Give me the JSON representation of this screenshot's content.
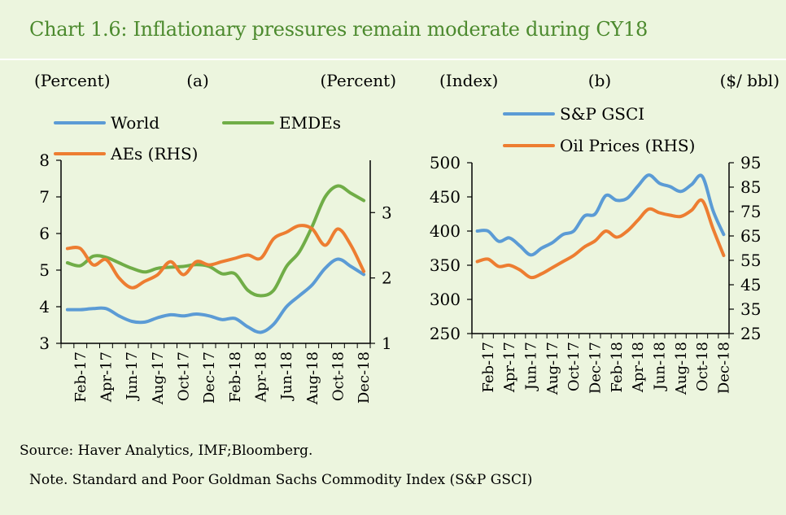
{
  "title": "Chart 1.6: Inflationary pressures remain moderate during CY18",
  "source": "Source: Haver Analytics, IMF;Bloomberg.",
  "note": "Note. Standard and Poor Goldman Sachs Commodity Index (S&P GSCI)",
  "colors": {
    "title": "#4c8a2e",
    "background": "#ecf5de",
    "blue": "#5b9bd5",
    "green": "#70ad47",
    "orange": "#ed7d31"
  },
  "chart_data": [
    {
      "type": "line",
      "panel_label": "(a)",
      "left_unit": "(Percent)",
      "right_unit": "(Percent)",
      "x": [
        "Jan-17",
        "Feb-17",
        "Mar-17",
        "Apr-17",
        "May-17",
        "Jun-17",
        "Jul-17",
        "Aug-17",
        "Sep-17",
        "Oct-17",
        "Nov-17",
        "Dec-17",
        "Jan-18",
        "Feb-18",
        "Mar-18",
        "Apr-18",
        "May-18",
        "Jun-18",
        "Jul-18",
        "Aug-18",
        "Sep-18",
        "Oct-18",
        "Nov-18",
        "Dec-18"
      ],
      "x_tick_labels": [
        "Feb-17",
        "Apr-17",
        "Jun-17",
        "Aug-17",
        "Oct-17",
        "Dec-17",
        "Feb-18",
        "Apr-18",
        "Jun-18",
        "Aug-18",
        "Oct-18",
        "Dec-18"
      ],
      "ylim_left": [
        3,
        8
      ],
      "yticks_left": [
        3,
        4,
        5,
        6,
        7,
        8
      ],
      "ylim_right": [
        1,
        3.8
      ],
      "yticks_right": [
        1,
        2,
        3
      ],
      "grid": false,
      "legend": "top",
      "series": [
        {
          "name": "World",
          "axis": "left",
          "color": "#5b9bd5",
          "values": [
            3.92,
            3.92,
            3.95,
            3.95,
            3.75,
            3.6,
            3.58,
            3.7,
            3.78,
            3.75,
            3.8,
            3.75,
            3.65,
            3.68,
            3.45,
            3.3,
            3.52,
            4.0,
            4.3,
            4.6,
            5.05,
            5.3,
            5.1,
            4.88
          ]
        },
        {
          "name": "EMDEs",
          "axis": "left",
          "color": "#70ad47",
          "values": [
            5.2,
            5.12,
            5.38,
            5.35,
            5.2,
            5.05,
            4.95,
            5.05,
            5.08,
            5.1,
            5.15,
            5.1,
            4.9,
            4.9,
            4.45,
            4.3,
            4.45,
            5.1,
            5.5,
            6.2,
            7.0,
            7.3,
            7.1,
            6.9
          ]
        },
        {
          "name": "AEs (RHS)",
          "axis": "right",
          "color": "#ed7d31",
          "values": [
            2.45,
            2.45,
            2.2,
            2.28,
            2.0,
            1.85,
            1.95,
            2.05,
            2.25,
            2.05,
            2.25,
            2.2,
            2.25,
            2.3,
            2.35,
            2.3,
            2.6,
            2.7,
            2.8,
            2.75,
            2.5,
            2.75,
            2.5,
            2.1
          ]
        }
      ]
    },
    {
      "type": "line",
      "panel_label": "(b)",
      "left_unit": "(Index)",
      "right_unit": "($/ bbl)",
      "x": [
        "Jan-17",
        "Feb-17",
        "Mar-17",
        "Apr-17",
        "May-17",
        "Jun-17",
        "Jul-17",
        "Aug-17",
        "Sep-17",
        "Oct-17",
        "Nov-17",
        "Dec-17",
        "Jan-18",
        "Feb-18",
        "Mar-18",
        "Apr-18",
        "May-18",
        "Jun-18",
        "Jul-18",
        "Aug-18",
        "Sep-18",
        "Oct-18",
        "Nov-18",
        "Dec-18"
      ],
      "x_tick_labels": [
        "Feb-17",
        "Apr-17",
        "Jun-17",
        "Aug-17",
        "Oct-17",
        "Dec-17",
        "Feb-18",
        "Apr-18",
        "Jun-18",
        "Aug-18",
        "Oct-18",
        "Dec-18"
      ],
      "ylim_left": [
        250,
        500
      ],
      "yticks_left": [
        250,
        300,
        350,
        400,
        450,
        500
      ],
      "ylim_right": [
        25,
        95
      ],
      "yticks_right": [
        25,
        35,
        45,
        55,
        65,
        75,
        85,
        95
      ],
      "grid": false,
      "legend": "top",
      "series": [
        {
          "name": "S&P GSCI",
          "axis": "left",
          "color": "#5b9bd5",
          "values": [
            400,
            400,
            385,
            390,
            378,
            365,
            375,
            383,
            395,
            400,
            422,
            425,
            452,
            445,
            448,
            466,
            482,
            470,
            465,
            458,
            468,
            480,
            430,
            395
          ]
        },
        {
          "name": "Oil Prices (RHS)",
          "axis": "right",
          "color": "#ed7d31",
          "values": [
            54.5,
            55.5,
            52.5,
            53,
            51,
            48,
            49.5,
            52,
            54.5,
            57,
            60.5,
            63,
            67,
            64.5,
            67,
            71.5,
            76,
            74.5,
            73.5,
            73,
            75.5,
            79.5,
            68,
            57
          ]
        }
      ]
    }
  ]
}
